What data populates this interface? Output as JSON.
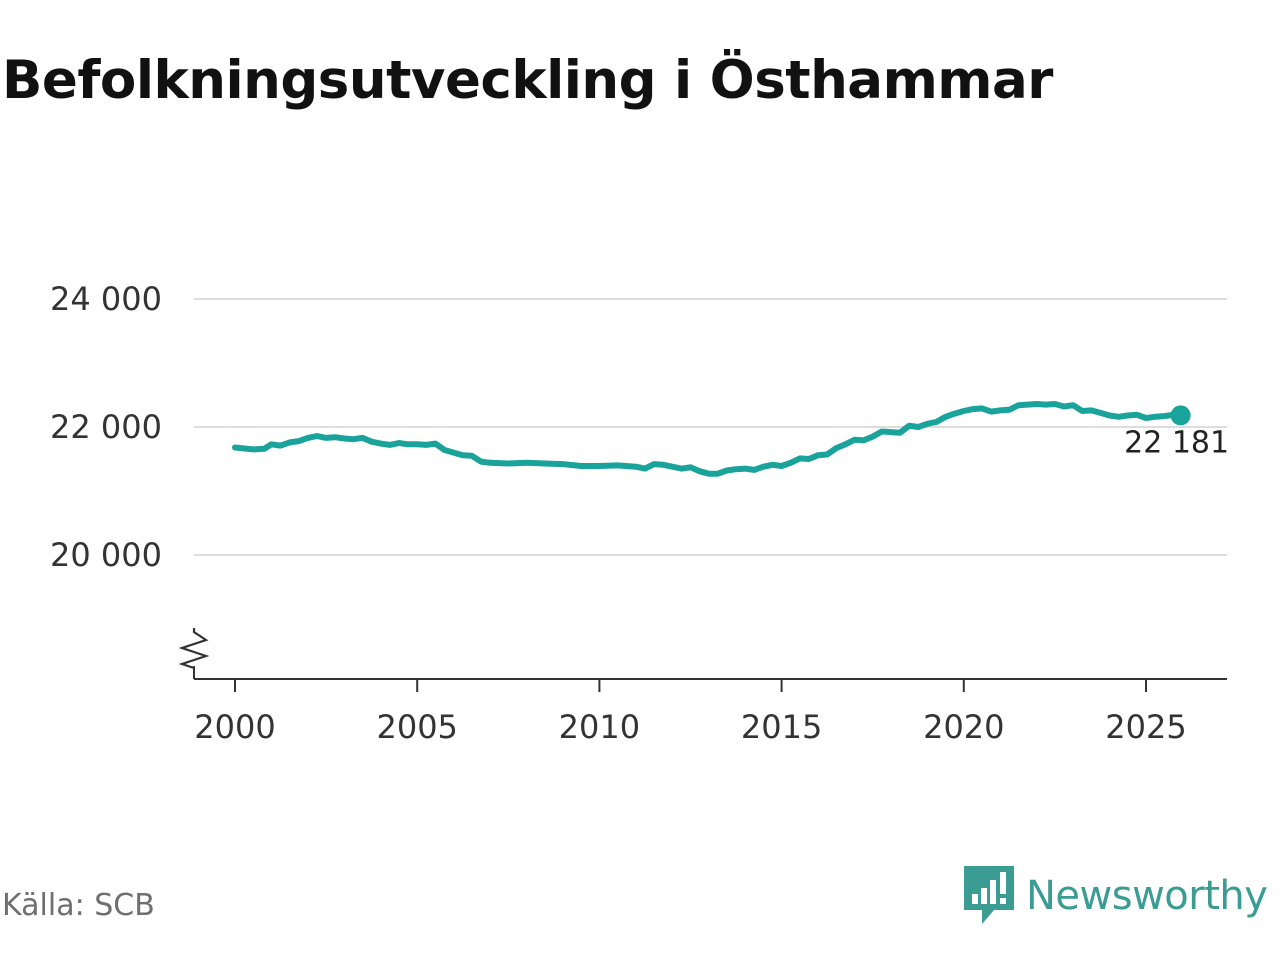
{
  "title": "Befolkningsutveckling i Östhammar",
  "source": "Källa: SCB",
  "brand": {
    "name": "Newsworthy",
    "icon": "newsworthy-logo-icon",
    "color": "#3a9c92"
  },
  "chart_data": {
    "type": "line",
    "title": "Befolkningsutveckling i Östhammar",
    "xlabel": "",
    "ylabel": "",
    "xlim": [
      1999,
      2027.2
    ],
    "ylim": [
      18800,
      24300
    ],
    "axis_break": true,
    "grid": true,
    "legend": "none",
    "line_color": "#1aa39b",
    "grid_color": "#dddddd",
    "x_ticks": [
      2000,
      2005,
      2010,
      2015,
      2020,
      2025
    ],
    "x_tick_labels": [
      "2000",
      "2005",
      "2010",
      "2015",
      "2020",
      "2025"
    ],
    "y_ticks": [
      20000,
      22000,
      24000
    ],
    "y_tick_labels": [
      "20 000",
      "22 000",
      "24 000"
    ],
    "last_value_label": "22 181",
    "series": [
      {
        "name": "Befolkning",
        "x": [
          2000.0,
          2000.5,
          2000.8,
          2001.0,
          2001.25,
          2001.5,
          2001.75,
          2002.0,
          2002.25,
          2002.5,
          2002.75,
          2003.0,
          2003.25,
          2003.5,
          2003.75,
          2004.0,
          2004.25,
          2004.5,
          2004.75,
          2005.0,
          2005.25,
          2005.5,
          2005.75,
          2006.0,
          2006.25,
          2006.5,
          2006.75,
          2007.0,
          2007.5,
          2008.0,
          2008.5,
          2009.0,
          2009.5,
          2010.0,
          2010.5,
          2011.0,
          2011.25,
          2011.5,
          2011.75,
          2012.0,
          2012.25,
          2012.5,
          2012.75,
          2013.0,
          2013.25,
          2013.5,
          2013.75,
          2014.0,
          2014.25,
          2014.5,
          2014.75,
          2015.0,
          2015.25,
          2015.5,
          2015.75,
          2016.0,
          2016.25,
          2016.5,
          2016.75,
          2017.0,
          2017.25,
          2017.5,
          2017.75,
          2018.0,
          2018.25,
          2018.5,
          2018.75,
          2019.0,
          2019.25,
          2019.5,
          2019.75,
          2020.0,
          2020.25,
          2020.5,
          2020.75,
          2021.0,
          2021.25,
          2021.5,
          2021.75,
          2022.0,
          2022.25,
          2022.5,
          2022.75,
          2023.0,
          2023.25,
          2023.5,
          2023.75,
          2024.0,
          2024.25,
          2024.5,
          2024.75,
          2025.0,
          2025.25,
          2025.5,
          2025.75,
          2025.95
        ],
        "values": [
          21680,
          21650,
          21660,
          21730,
          21710,
          21760,
          21780,
          21830,
          21860,
          21830,
          21840,
          21820,
          21810,
          21830,
          21770,
          21740,
          21720,
          21750,
          21730,
          21730,
          21720,
          21740,
          21640,
          21600,
          21560,
          21550,
          21460,
          21440,
          21430,
          21440,
          21430,
          21420,
          21390,
          21390,
          21400,
          21380,
          21350,
          21420,
          21410,
          21380,
          21350,
          21370,
          21310,
          21270,
          21270,
          21320,
          21340,
          21350,
          21330,
          21380,
          21410,
          21390,
          21440,
          21510,
          21500,
          21560,
          21570,
          21670,
          21730,
          21800,
          21790,
          21850,
          21930,
          21920,
          21910,
          22020,
          22000,
          22050,
          22080,
          22160,
          22210,
          22250,
          22280,
          22290,
          22240,
          22260,
          22270,
          22340,
          22350,
          22360,
          22350,
          22360,
          22320,
          22340,
          22250,
          22260,
          22220,
          22180,
          22160,
          22180,
          22190,
          22140,
          22160,
          22170,
          22190,
          22181
        ]
      }
    ]
  }
}
